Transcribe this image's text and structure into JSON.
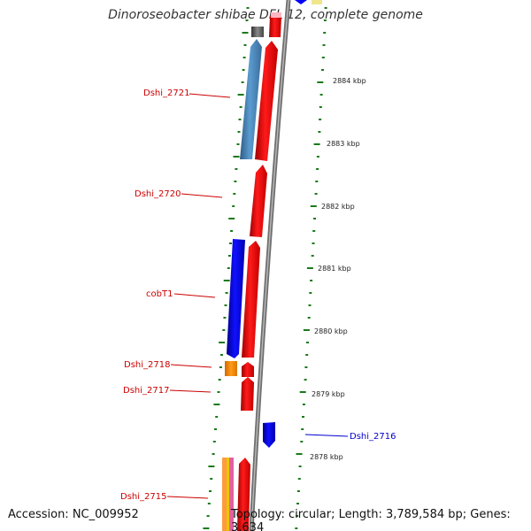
{
  "title": "Dinoroseobacter shibae DFL 12, complete genome",
  "accession": "Accession: NC_009952",
  "topology": "Topology: circular; Length: 3,789,584 bp; Genes: 3,634",
  "colors": {
    "forward_gene": "#ff0000",
    "reverse_gene": "#0000ff",
    "steelblue_gene": "#4682b4",
    "orange_gene": "#ff8c00",
    "gray_gene": "#555555",
    "backbone": "#7a7a7a",
    "ticks": "#1a7a1a",
    "label_red": "#cc0000",
    "label_blue": "#0000cc"
  },
  "gene_labels": [
    {
      "text": "Dshi_2721",
      "strand": "reverse"
    },
    {
      "text": "Dshi_2720",
      "strand": "reverse"
    },
    {
      "text": "cobT1",
      "strand": "reverse"
    },
    {
      "text": "Dshi_2718",
      "strand": "reverse"
    },
    {
      "text": "Dshi_2717",
      "strand": "reverse"
    },
    {
      "text": "Dshi_2716",
      "strand": "forward"
    },
    {
      "text": "Dshi_2715",
      "strand": "reverse"
    }
  ],
  "scale_labels": [
    "2884 kbp",
    "2883 kbp",
    "2882 kbp",
    "2881 kbp",
    "2880 kbp",
    "2879 kbp",
    "2878 kbp"
  ]
}
